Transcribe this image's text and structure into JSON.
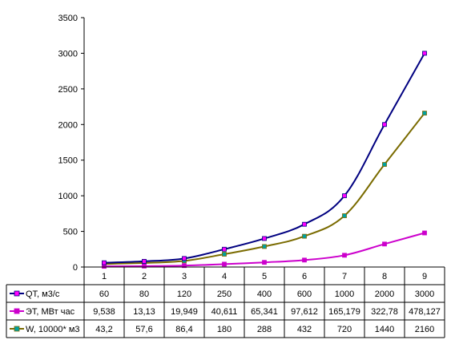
{
  "chart_data": {
    "type": "line",
    "categories": [
      "1",
      "2",
      "3",
      "4",
      "5",
      "6",
      "7",
      "8",
      "9"
    ],
    "ylim": [
      0,
      3500
    ],
    "yticks": [
      0,
      500,
      1000,
      1500,
      2000,
      2500,
      3000,
      3500
    ],
    "grid": false,
    "legend": "data table below plot",
    "series": [
      {
        "name": "QT, м3/с",
        "color": "#000080",
        "marker_color": "#ff00ff",
        "values": [
          60,
          80,
          120,
          250,
          400,
          600,
          1000,
          2000,
          3000
        ],
        "labels": [
          "60",
          "80",
          "120",
          "250",
          "400",
          "600",
          "1000",
          "2000",
          "3000"
        ]
      },
      {
        "name": "ЭТ, МВт час",
        "color": "#cc00cc",
        "marker_color": "#cc00cc",
        "values": [
          9.538,
          13.13,
          19.949,
          40.611,
          65.341,
          97.612,
          165.179,
          322.78,
          478.127
        ],
        "labels": [
          "9,538",
          "13,13",
          "19,949",
          "40,611",
          "65,341",
          "97,612",
          "165,179",
          "322,78",
          "478,127"
        ]
      },
      {
        "name": "W, 10000* м3",
        "color": "#7a6b00",
        "marker_color": "#00a0a0",
        "values": [
          43.2,
          57.6,
          86.4,
          180,
          288,
          432,
          720,
          1440,
          2160
        ],
        "labels": [
          "43,2",
          "57,6",
          "86,4",
          "180",
          "288",
          "432",
          "720",
          "1440",
          "2160"
        ]
      }
    ]
  }
}
